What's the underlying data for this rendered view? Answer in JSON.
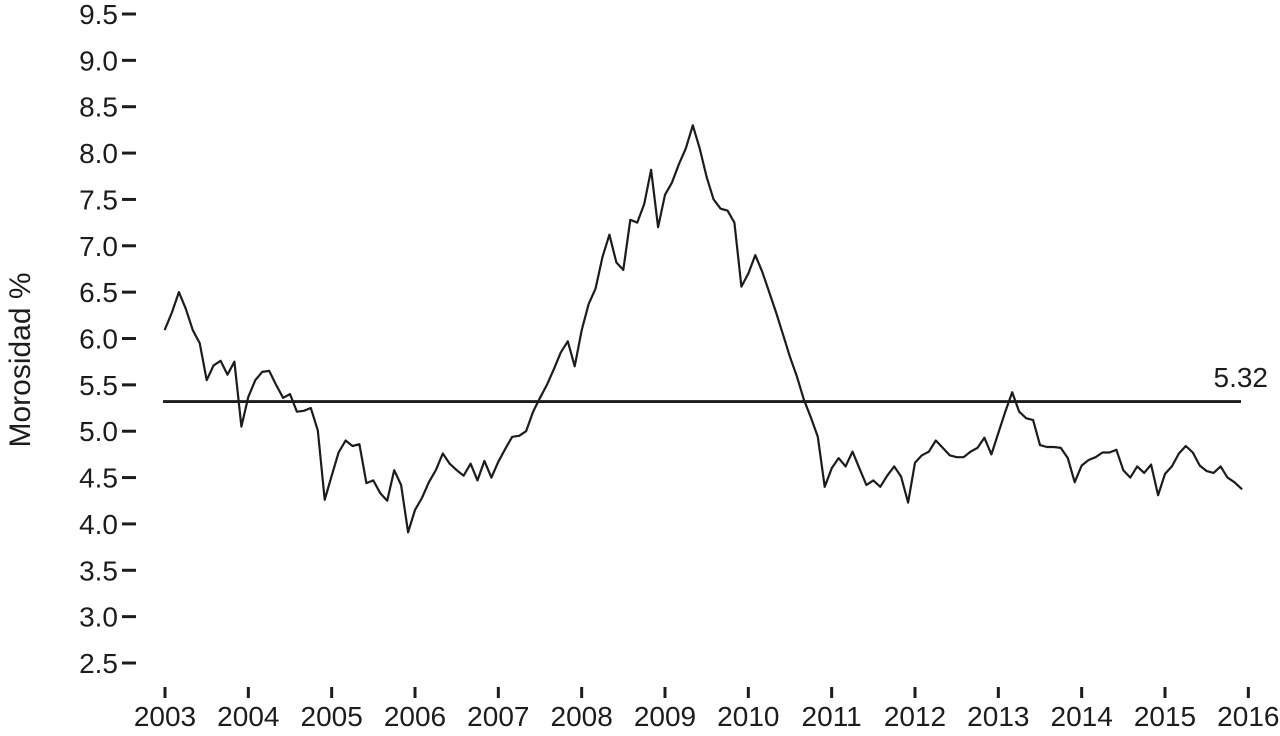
{
  "chart_data": {
    "type": "line",
    "title": "",
    "ylabel": "Morosidad %",
    "xlabel": "",
    "frequency": "monthly",
    "x_start": "2003-01",
    "x_end": "2015-12",
    "xticks": [
      "2003",
      "2004",
      "2005",
      "2006",
      "2007",
      "2008",
      "2009",
      "2010",
      "2011",
      "2012",
      "2013",
      "2014",
      "2015",
      "2016"
    ],
    "yticks": [
      "2.5",
      "3.0",
      "3.5",
      "4.0",
      "4.5",
      "5.0",
      "5.5",
      "6.0",
      "6.5",
      "7.0",
      "7.5",
      "8.0",
      "8.5",
      "9.0",
      "9.5"
    ],
    "ylim": [
      2.5,
      9.5
    ],
    "xlim": [
      2003,
      2016
    ],
    "grid": false,
    "legend": null,
    "line_color": "#1c1c1c",
    "reference_line": {
      "value": 5.32,
      "label": "5.32"
    },
    "series": [
      {
        "name": "Morosidad %",
        "values": [
          6.1,
          6.28,
          6.5,
          6.32,
          6.09,
          5.95,
          5.55,
          5.71,
          5.76,
          5.61,
          5.75,
          5.05,
          5.37,
          5.55,
          5.64,
          5.65,
          5.5,
          5.36,
          5.4,
          5.21,
          5.22,
          5.25,
          5.01,
          4.26,
          4.52,
          4.77,
          4.9,
          4.84,
          4.86,
          4.44,
          4.47,
          4.33,
          4.25,
          4.58,
          4.42,
          3.91,
          4.15,
          4.28,
          4.45,
          4.58,
          4.76,
          4.65,
          4.58,
          4.52,
          4.65,
          4.47,
          4.68,
          4.5,
          4.67,
          4.81,
          4.94,
          4.95,
          5.0,
          5.21,
          5.36,
          5.5,
          5.67,
          5.85,
          5.97,
          5.7,
          6.09,
          6.37,
          6.54,
          6.88,
          7.12,
          6.82,
          6.74,
          7.28,
          7.25,
          7.45,
          7.82,
          7.2,
          7.55,
          7.68,
          7.88,
          8.05,
          8.3,
          8.05,
          7.74,
          7.5,
          7.4,
          7.38,
          7.25,
          6.56,
          6.7,
          6.9,
          6.72,
          6.5,
          6.28,
          6.04,
          5.8,
          5.59,
          5.34,
          5.15,
          4.94,
          4.4,
          4.6,
          4.71,
          4.62,
          4.78,
          4.6,
          4.42,
          4.47,
          4.4,
          4.52,
          4.62,
          4.51,
          4.23,
          4.66,
          4.74,
          4.78,
          4.9,
          4.82,
          4.74,
          4.72,
          4.72,
          4.78,
          4.82,
          4.93,
          4.75,
          4.98,
          5.21,
          5.42,
          5.21,
          5.14,
          5.12,
          4.85,
          4.83,
          4.83,
          4.82,
          4.71,
          4.45,
          4.63,
          4.69,
          4.72,
          4.77,
          4.77,
          4.8,
          4.58,
          4.5,
          4.62,
          4.55,
          4.64,
          4.31,
          4.54,
          4.62,
          4.76,
          4.84,
          4.77,
          4.63,
          4.57,
          4.55,
          4.62,
          4.5,
          4.45,
          4.38
        ]
      }
    ]
  }
}
